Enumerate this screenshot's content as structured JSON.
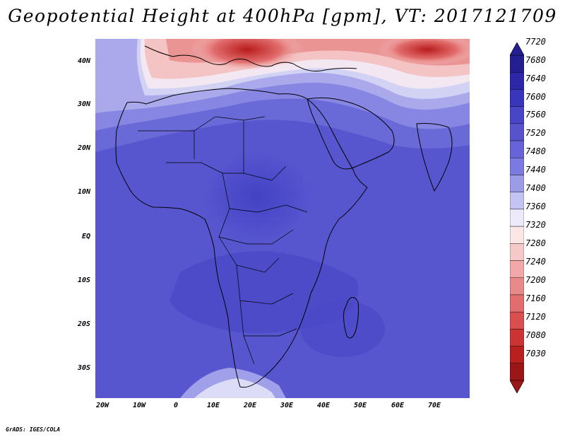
{
  "title": "Geopotential Height at 400hPa [gpm], VT: 2017121709",
  "footer": "GrADS: IGES/COLA",
  "map": {
    "region": "Africa",
    "variable": "Geopotential Height",
    "level": "400hPa",
    "units": "gpm",
    "valid_time": "2017121709",
    "lat_labels": [
      "40N",
      "30N",
      "20N",
      "10N",
      "EQ",
      "10S",
      "20S",
      "30S"
    ],
    "lon_labels": [
      "20W",
      "10W",
      "0",
      "10E",
      "20E",
      "30E",
      "40E",
      "50E",
      "60E",
      "70E"
    ]
  },
  "colorbar": {
    "labels": [
      "7720",
      "7680",
      "7640",
      "7600",
      "7560",
      "7520",
      "7480",
      "7440",
      "7400",
      "7360",
      "7320",
      "7280",
      "7240",
      "7200",
      "7160",
      "7120",
      "7080",
      "7030"
    ],
    "colors": [
      "#231f91",
      "#2b27a8",
      "#3a36bb",
      "#4845c6",
      "#5653cd",
      "#6664d6",
      "#7b7ae0",
      "#9b9be8",
      "#c4c4f2",
      "#ebe9fa",
      "#fbe6e6",
      "#f6c9c9",
      "#f0a8a8",
      "#e98a8a",
      "#e26d6d",
      "#d94e4e",
      "#cc3434",
      "#b82020",
      "#9b1616"
    ]
  }
}
